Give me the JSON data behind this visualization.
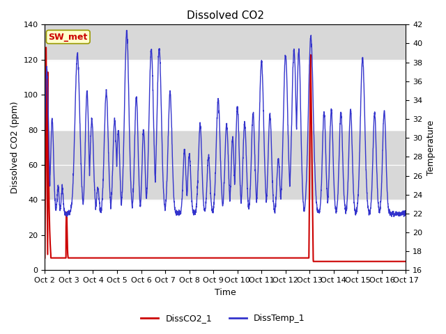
{
  "title": "Dissolved CO2",
  "xlabel": "Time",
  "ylabel_left": "Dissolved CO2 (ppm)",
  "ylabel_right": "Temperature",
  "ylim_left": [
    0,
    140
  ],
  "ylim_right": [
    16,
    42
  ],
  "yticks_left": [
    0,
    20,
    40,
    60,
    80,
    100,
    120,
    140
  ],
  "yticks_right": [
    16,
    18,
    20,
    22,
    24,
    26,
    28,
    30,
    32,
    34,
    36,
    38,
    40,
    42
  ],
  "color_co2": "#cc0000",
  "color_temp": "#3333cc",
  "legend_label_co2": "DissCO2_1",
  "legend_label_temp": "DissTemp_1",
  "annotation_text": "SW_met",
  "annotation_color": "#cc0000",
  "annotation_bg": "#ffffcc",
  "annotation_border": "#999900",
  "band_color_gray": "#d8d8d8",
  "grid_color": "#ffffff",
  "title_fontsize": 11,
  "axis_fontsize": 9,
  "tick_fontsize": 8,
  "xtick_labels": [
    "Oct 2",
    "Oct 3",
    "Oct 4",
    "Oct 5",
    "Oct 6",
    "Oct 7",
    "Oct 8",
    "Oct 9",
    "Oct 10",
    "Oct 11",
    "Oct 12",
    "Oct 13",
    "Oct 14",
    "Oct 15",
    "Oct 16",
    "Oct 17"
  ],
  "xtick_positions": [
    0,
    1,
    2,
    3,
    4,
    5,
    6,
    7,
    8,
    9,
    10,
    11,
    12,
    13,
    14,
    15
  ]
}
